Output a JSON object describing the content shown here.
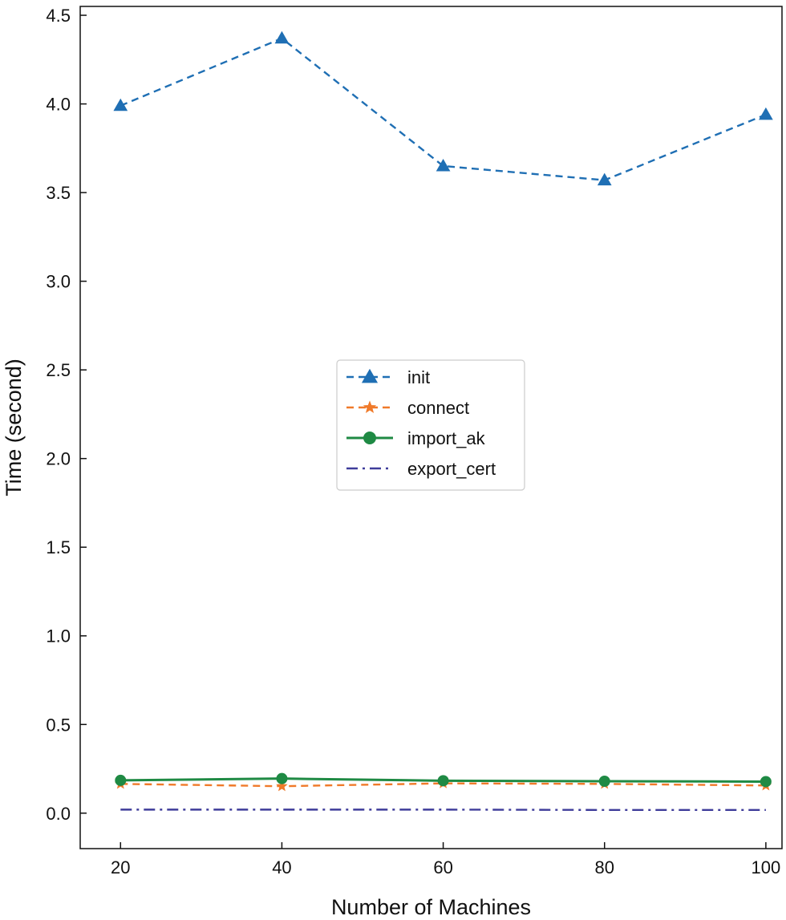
{
  "chart_data": {
    "type": "line",
    "title": "",
    "xlabel": "Number of Machines",
    "ylabel": "Time (second)",
    "x": [
      20,
      40,
      60,
      80,
      100
    ],
    "xticks": [
      "20",
      "40",
      "60",
      "80",
      "100"
    ],
    "xlim": [
      15,
      102
    ],
    "ylim": [
      -0.2,
      4.55
    ],
    "yticks": [
      "0.0",
      "0.5",
      "1.0",
      "1.5",
      "2.0",
      "2.5",
      "3.0",
      "3.5",
      "4.0",
      "4.5"
    ],
    "ytick_values": [
      0.0,
      0.5,
      1.0,
      1.5,
      2.0,
      2.5,
      3.0,
      3.5,
      4.0,
      4.5
    ],
    "grid": false,
    "legend_position": "center",
    "series": [
      {
        "name": "init",
        "values": [
          3.99,
          4.37,
          3.65,
          3.57,
          3.94
        ],
        "color": "#1f6fb4",
        "line_style": "dashed",
        "marker": "triangle"
      },
      {
        "name": "connect",
        "values": [
          0.165,
          0.152,
          0.168,
          0.165,
          0.156
        ],
        "color": "#f07a2a",
        "line_style": "dashed",
        "marker": "star"
      },
      {
        "name": "import_ak",
        "values": [
          0.185,
          0.195,
          0.183,
          0.18,
          0.178
        ],
        "color": "#1f8a44",
        "line_style": "solid",
        "marker": "circle"
      },
      {
        "name": "export_cert",
        "values": [
          0.02,
          0.02,
          0.02,
          0.018,
          0.018
        ],
        "color": "#3e3c9a",
        "line_style": "dashdot",
        "marker": "none"
      }
    ]
  }
}
